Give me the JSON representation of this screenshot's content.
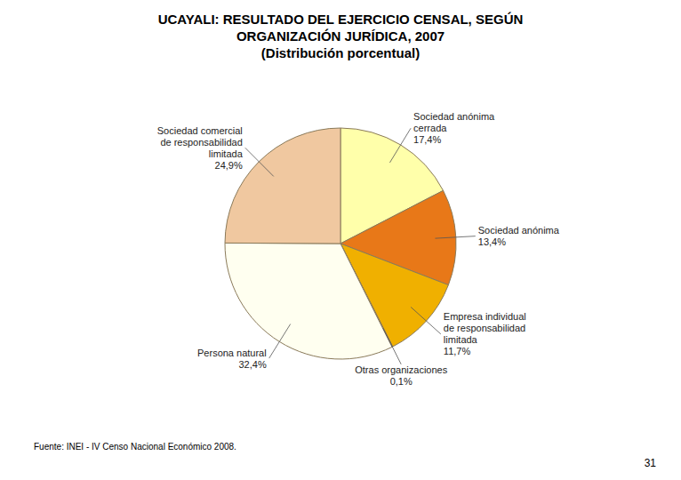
{
  "chart_data": {
    "type": "pie",
    "title": "UCAYALI: RESULTADO DEL EJERCICIO CENSAL, SEGÚN\nORGANIZACIÓN JURÍDICA, 2007",
    "subtitle": "(Distribución porcentual)",
    "categories": [
      "Sociedad anónima\ncerrada",
      "Sociedad anónima",
      "Empresa individual\nde responsabilidad\nlimitada",
      "Otras organizaciones",
      "Persona natural",
      "Sociedad comercial\nde responsabilidad\nlimitada"
    ],
    "values": [
      17.4,
      13.4,
      11.7,
      0.1,
      32.4,
      24.9
    ],
    "value_labels": [
      "17,4%",
      "13,4%",
      "11,7%",
      "0,1%",
      "32,4%",
      "24,9%"
    ],
    "colors": [
      "#FFFFAA",
      "#E87818",
      "#F0B000",
      "#8B1010",
      "#FFFFF0",
      "#F0C8A0"
    ],
    "data_labels": true,
    "annotations": [
      "Fuente: INEI - IV Censo Nacional Económico 2008.",
      "31"
    ]
  }
}
